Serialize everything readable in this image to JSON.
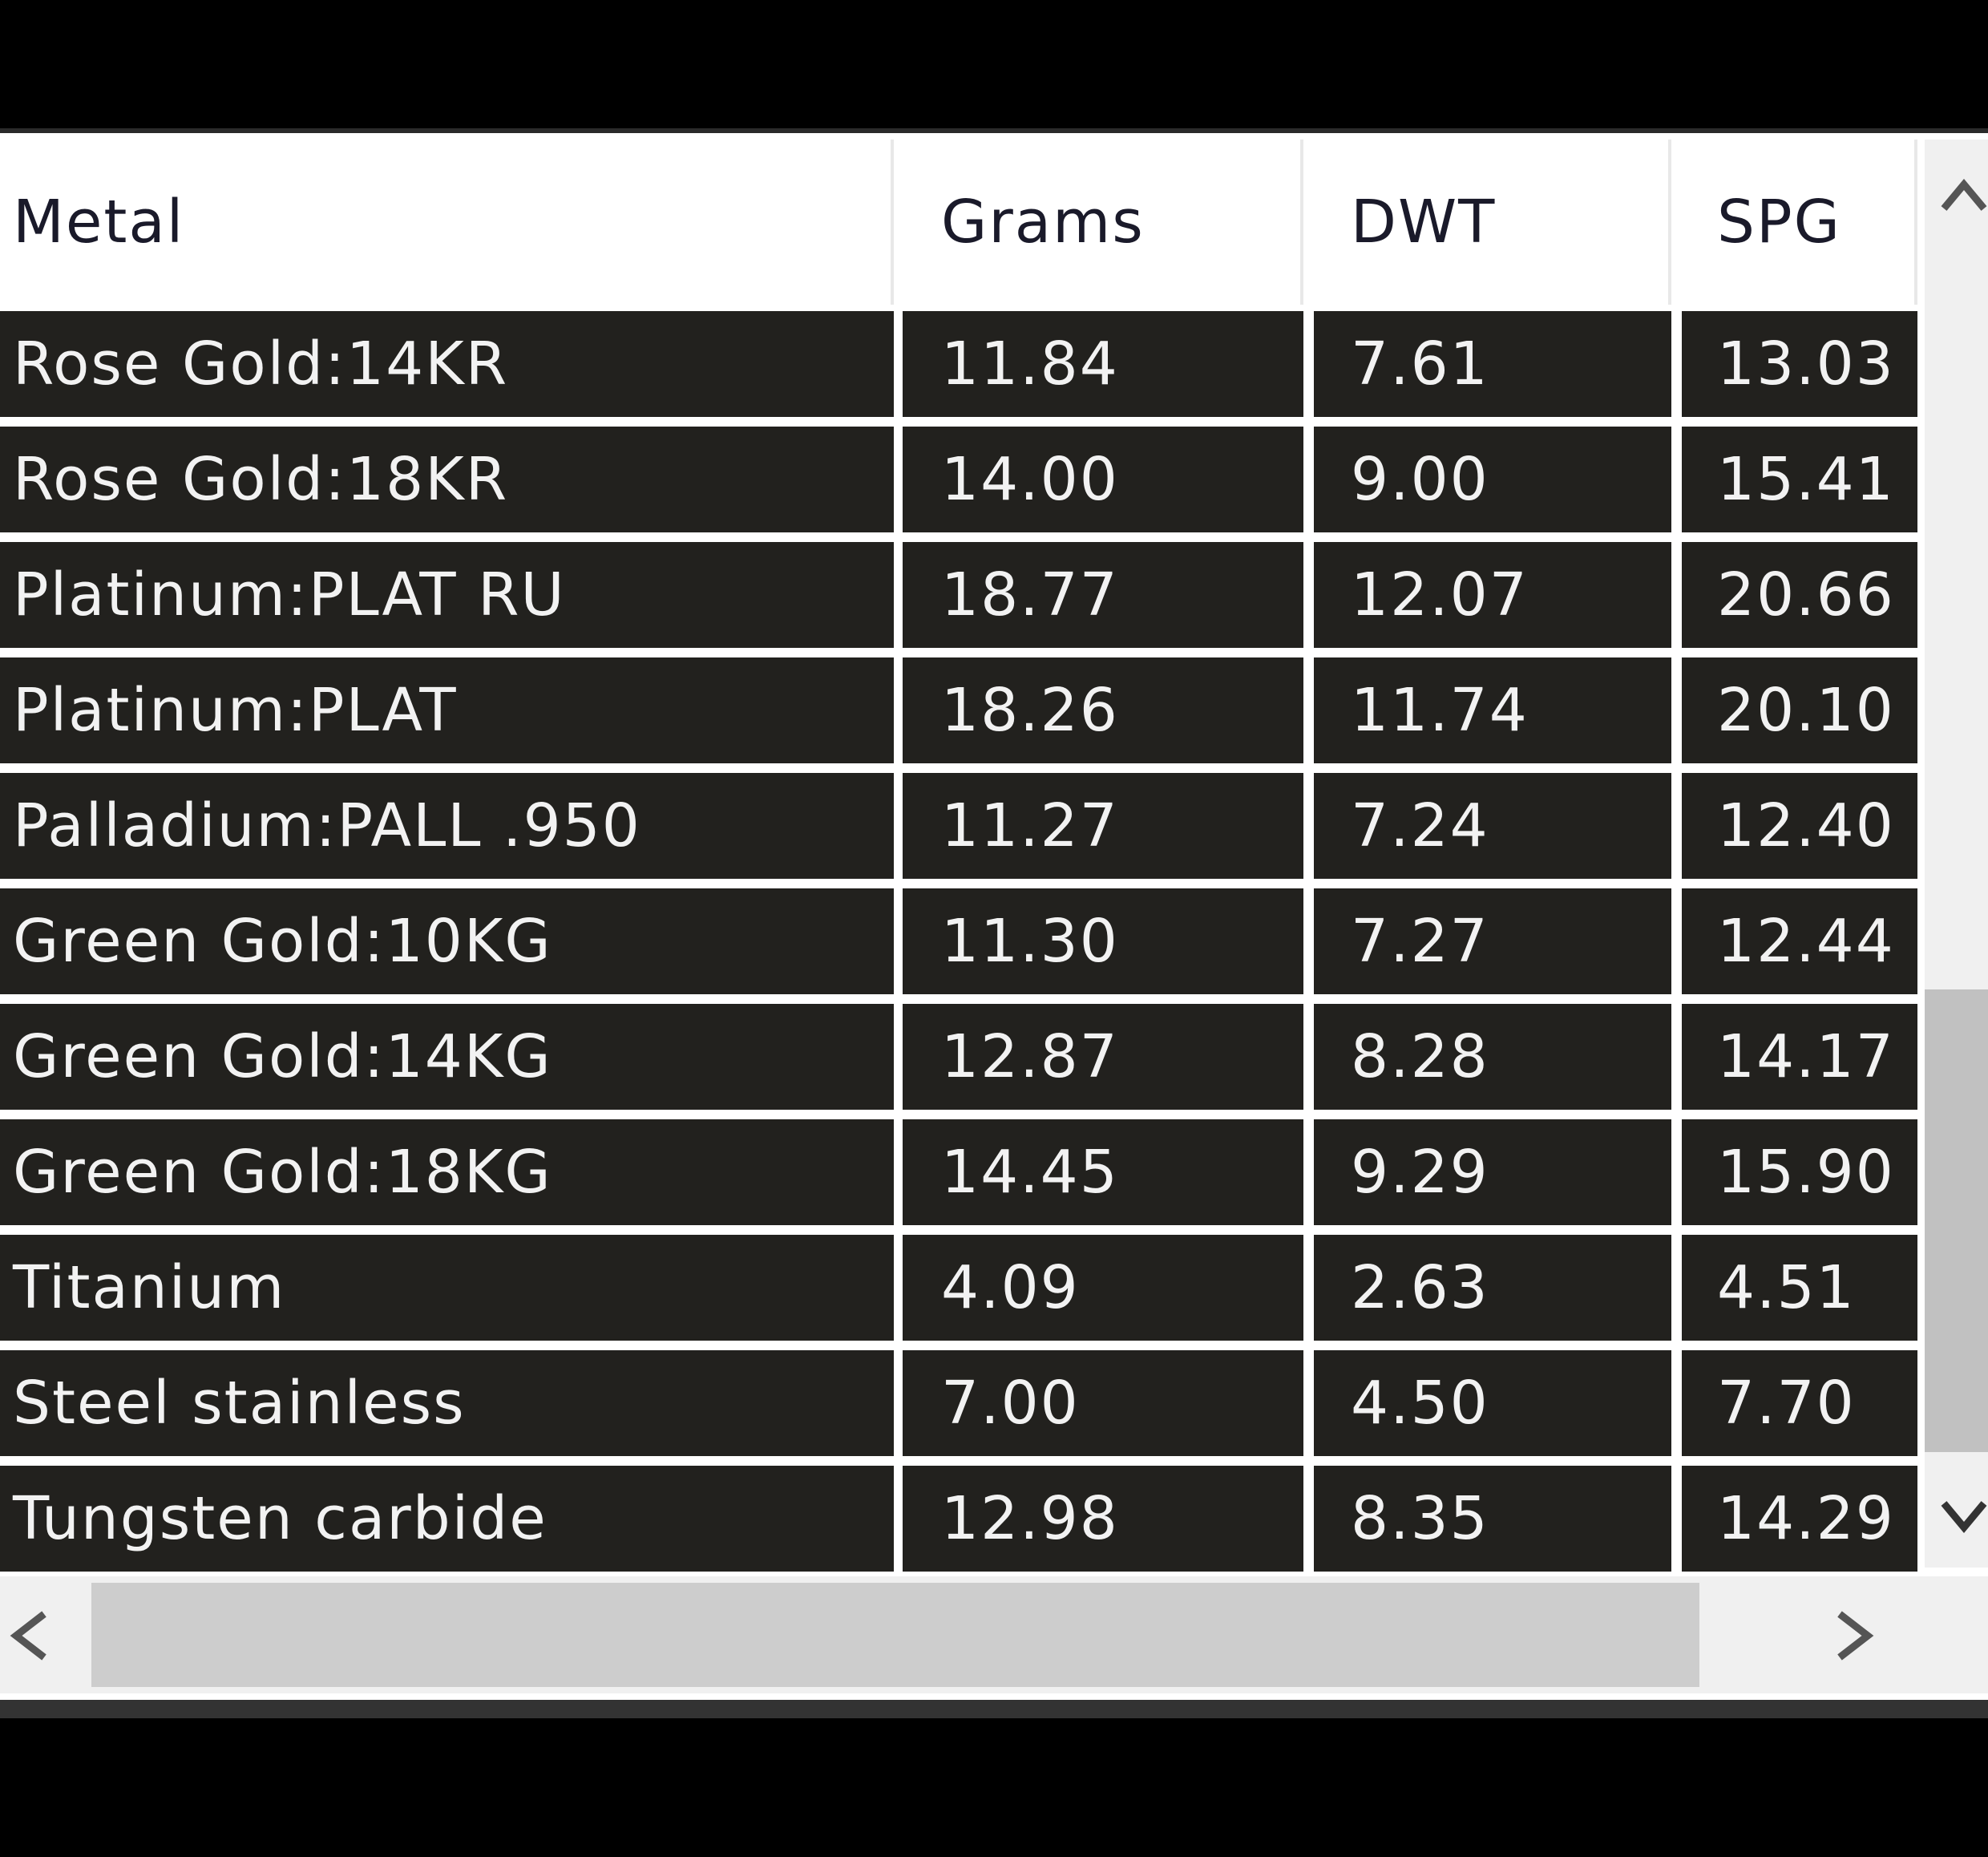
{
  "table": {
    "columns": [
      "Metal",
      "Grams",
      "DWT",
      "SPG"
    ],
    "rows": [
      [
        "Rose Gold:14KR",
        "11.84",
        "7.61",
        "13.03"
      ],
      [
        "Rose Gold:18KR",
        "14.00",
        "9.00",
        "15.41"
      ],
      [
        "Platinum:PLAT RU",
        "18.77",
        "12.07",
        "20.66"
      ],
      [
        "Platinum:PLAT",
        "18.26",
        "11.74",
        "20.10"
      ],
      [
        "Palladium:PALL .950",
        "11.27",
        "7.24",
        "12.40"
      ],
      [
        "Green Gold:10KG",
        "11.30",
        "7.27",
        "12.44"
      ],
      [
        "Green Gold:14KG",
        "12.87",
        "8.28",
        "14.17"
      ],
      [
        "Green Gold:18KG",
        "14.45",
        "9.29",
        "15.90"
      ],
      [
        "Titanium",
        "4.09",
        "2.63",
        "4.51"
      ],
      [
        "Steel stainless",
        "7.00",
        "4.50",
        "7.70"
      ],
      [
        "Tungsten carbide",
        "12.98",
        "8.35",
        "14.29"
      ]
    ]
  }
}
